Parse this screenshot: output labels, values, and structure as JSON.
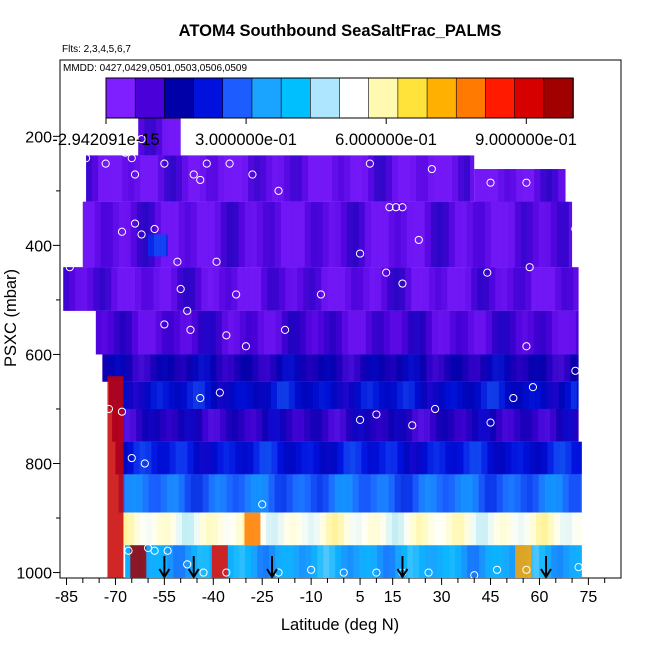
{
  "header": {
    "title": "ATOM4 Southbound SeaSaltFrac_PALMS",
    "flights_label": "Flts: 2,3,4,5,6,7",
    "dates_label": "MMDD: 0427,0429,0501,0503,0506,0509"
  },
  "colorbar": {
    "tick_labels": [
      "-2.942091e-15",
      "3.000000e-01",
      "6.000000e-01",
      "9.000000e-01"
    ],
    "tick_values": [
      0.0,
      0.3,
      0.6,
      0.9
    ],
    "range": [
      0.0,
      1.0
    ],
    "colors": [
      "#7f1fff",
      "#4a00d8",
      "#0000a8",
      "#0011dd",
      "#1d5cff",
      "#1aa3ff",
      "#00bfff",
      "#aee6ff",
      "#ffffff",
      "#fffab0",
      "#ffe23a",
      "#ffb000",
      "#ff7a00",
      "#ff1a00",
      "#d60000",
      "#a00000"
    ]
  },
  "chart_data": {
    "type": "heatmap",
    "title": "ATOM4 Southbound SeaSaltFrac_PALMS",
    "xlabel": "Latitude (deg N)",
    "ylabel": "PSXC (mbar)",
    "xlim": [
      -87,
      85
    ],
    "ylim": [
      1010,
      60
    ],
    "x_ticks": [
      -85,
      -70,
      -55,
      -40,
      -25,
      -10,
      5,
      15,
      30,
      45,
      60,
      75
    ],
    "y_ticks": [
      200,
      400,
      600,
      800,
      1000
    ],
    "value_range": [
      0.0,
      1.0
    ],
    "levels": [
      {
        "p": [
          140,
          235
        ],
        "lat": [
          -63,
          -50
        ],
        "value": 0.03
      },
      {
        "p": [
          235,
          320
        ],
        "lat": [
          -79,
          40
        ],
        "value": 0.03
      },
      {
        "p": [
          260,
          380
        ],
        "lat": [
          40,
          68
        ],
        "value": 0.03
      },
      {
        "p": [
          320,
          440
        ],
        "lat": [
          -80,
          70
        ],
        "value": 0.04
      },
      {
        "p": [
          380,
          420
        ],
        "lat": [
          -60,
          -54
        ],
        "value": 0.22
      },
      {
        "p": [
          440,
          520
        ],
        "lat": [
          -86,
          72
        ],
        "value": 0.04
      },
      {
        "p": [
          520,
          600
        ],
        "lat": [
          -76,
          72
        ],
        "value": 0.06
      },
      {
        "p": [
          600,
          650
        ],
        "lat": [
          -74,
          72
        ],
        "value": 0.12
      },
      {
        "p": [
          650,
          700
        ],
        "lat": [
          -72,
          72
        ],
        "value": 0.18
      },
      {
        "p": [
          700,
          760
        ],
        "lat": [
          -71,
          72
        ],
        "value": 0.1
      },
      {
        "p": [
          760,
          820
        ],
        "lat": [
          -70,
          73
        ],
        "value": 0.2
      },
      {
        "p": [
          820,
          890
        ],
        "lat": [
          -69,
          73
        ],
        "value": 0.28
      },
      {
        "p": [
          890,
          950
        ],
        "lat": [
          -68,
          73
        ],
        "value": 0.55
      },
      {
        "p": [
          950,
          1010
        ],
        "lat": [
          -67,
          73
        ],
        "value": 0.35
      }
    ],
    "hotspots": [
      {
        "lat": -70,
        "p": [
          640,
          1010
        ],
        "value": 0.95
      },
      {
        "lat": -63,
        "p": [
          950,
          1010
        ],
        "value": 1.0
      },
      {
        "lat": -38,
        "p": [
          950,
          1010
        ],
        "value": 0.9
      },
      {
        "lat": -28,
        "p": [
          890,
          950
        ],
        "value": 0.8
      },
      {
        "lat": 55,
        "p": [
          950,
          1010
        ],
        "value": 0.75
      }
    ],
    "sample_points": [
      {
        "lat": -84,
        "p": 440
      },
      {
        "lat": -79,
        "p": 240
      },
      {
        "lat": -73,
        "p": 250
      },
      {
        "lat": -67,
        "p": 230
      },
      {
        "lat": -65,
        "p": 240
      },
      {
        "lat": -64,
        "p": 270
      },
      {
        "lat": -62,
        "p": 205
      },
      {
        "lat": -55,
        "p": 250
      },
      {
        "lat": -48,
        "p": 205
      },
      {
        "lat": -46,
        "p": 270
      },
      {
        "lat": -44,
        "p": 280
      },
      {
        "lat": -42,
        "p": 250
      },
      {
        "lat": -35,
        "p": 250
      },
      {
        "lat": -28,
        "p": 270
      },
      {
        "lat": -20,
        "p": 300
      },
      {
        "lat": 0,
        "p": 225
      },
      {
        "lat": 8,
        "p": 250
      },
      {
        "lat": 14,
        "p": 330
      },
      {
        "lat": 16,
        "p": 330
      },
      {
        "lat": 18,
        "p": 330
      },
      {
        "lat": 24,
        "p": 220
      },
      {
        "lat": 27,
        "p": 260
      },
      {
        "lat": 45,
        "p": 285
      },
      {
        "lat": 56,
        "p": 285
      },
      {
        "lat": -68,
        "p": 375
      },
      {
        "lat": -64,
        "p": 360
      },
      {
        "lat": -62,
        "p": 380
      },
      {
        "lat": -58,
        "p": 370
      },
      {
        "lat": -51,
        "p": 430
      },
      {
        "lat": -39,
        "p": 430
      },
      {
        "lat": 5,
        "p": 415
      },
      {
        "lat": 13,
        "p": 450
      },
      {
        "lat": 18,
        "p": 470
      },
      {
        "lat": 23,
        "p": 390
      },
      {
        "lat": 44,
        "p": 450
      },
      {
        "lat": 57,
        "p": 440
      },
      {
        "lat": 71,
        "p": 370
      },
      {
        "lat": -50,
        "p": 480
      },
      {
        "lat": -48,
        "p": 520
      },
      {
        "lat": -33,
        "p": 490
      },
      {
        "lat": -7,
        "p": 490
      },
      {
        "lat": -78,
        "p": 540
      },
      {
        "lat": -55,
        "p": 545
      },
      {
        "lat": -47,
        "p": 555
      },
      {
        "lat": -36,
        "p": 565
      },
      {
        "lat": -30,
        "p": 585
      },
      {
        "lat": -18,
        "p": 555
      },
      {
        "lat": 56,
        "p": 585
      },
      {
        "lat": 71,
        "p": 630
      },
      {
        "lat": -44,
        "p": 680
      },
      {
        "lat": -38,
        "p": 670
      },
      {
        "lat": -68,
        "p": 705
      },
      {
        "lat": -72,
        "p": 700
      },
      {
        "lat": 5,
        "p": 720
      },
      {
        "lat": 10,
        "p": 710
      },
      {
        "lat": 21,
        "p": 730
      },
      {
        "lat": 28,
        "p": 700
      },
      {
        "lat": 45,
        "p": 725
      },
      {
        "lat": 52,
        "p": 680
      },
      {
        "lat": 58,
        "p": 660
      },
      {
        "lat": -65,
        "p": 790
      },
      {
        "lat": -61,
        "p": 800
      },
      {
        "lat": -66,
        "p": 960
      },
      {
        "lat": -60,
        "p": 955
      },
      {
        "lat": -58,
        "p": 960
      },
      {
        "lat": -54,
        "p": 960
      },
      {
        "lat": -48,
        "p": 985
      },
      {
        "lat": -43,
        "p": 1000
      },
      {
        "lat": -36,
        "p": 1000
      },
      {
        "lat": -25,
        "p": 875
      },
      {
        "lat": -20,
        "p": 1000
      },
      {
        "lat": -10,
        "p": 995
      },
      {
        "lat": 0,
        "p": 1000
      },
      {
        "lat": 10,
        "p": 1000
      },
      {
        "lat": 18,
        "p": 1000
      },
      {
        "lat": 26,
        "p": 1000
      },
      {
        "lat": 40,
        "p": 1005
      },
      {
        "lat": 47,
        "p": 995
      },
      {
        "lat": 56,
        "p": 995
      },
      {
        "lat": 72,
        "p": 990
      }
    ],
    "profile_arrows_lat": [
      -55,
      -46,
      -22,
      18,
      62
    ]
  }
}
